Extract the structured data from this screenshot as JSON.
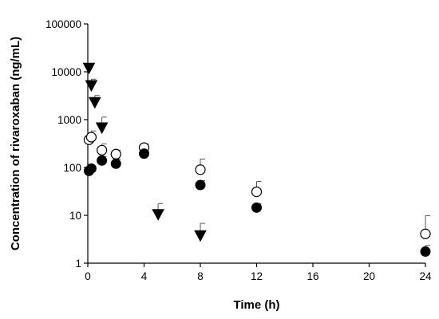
{
  "chart_data": {
    "type": "scatter",
    "xlabel": "Time (h)",
    "ylabel": "Concentration of rivaroxaban (ng/mL)",
    "xlim": [
      0,
      24
    ],
    "ylim": [
      1,
      100000
    ],
    "yscale": "log",
    "xticks": [
      0,
      4,
      8,
      12,
      16,
      20,
      24
    ],
    "yticks": [
      1,
      10,
      100,
      1000,
      10000,
      100000
    ],
    "xtick_labels": [
      "0",
      "4",
      "8",
      "12",
      "16",
      "20",
      "24"
    ],
    "ytick_labels": [
      "1",
      "10",
      "100",
      "1000",
      "10000",
      "100000"
    ],
    "grid": false,
    "legend": false,
    "series": [
      {
        "marker": "triangle-down",
        "fill": "#000000",
        "points": [
          {
            "x": 0.083,
            "y": 12000,
            "err": 0
          },
          {
            "x": 0.25,
            "y": 5200,
            "err": 1800
          },
          {
            "x": 0.5,
            "y": 2300,
            "err": 900
          },
          {
            "x": 1,
            "y": 680,
            "err": 450
          },
          {
            "x": 5,
            "y": 10.5,
            "err": 7
          },
          {
            "x": 8,
            "y": 3.8,
            "err": 3
          }
        ]
      },
      {
        "marker": "circle-open",
        "fill": "#ffffff",
        "points": [
          {
            "x": 0.083,
            "y": 380,
            "err": 60
          },
          {
            "x": 0.25,
            "y": 430,
            "err": 150
          },
          {
            "x": 1,
            "y": 230,
            "err": 80
          },
          {
            "x": 2,
            "y": 190,
            "err": 40
          },
          {
            "x": 4,
            "y": 260,
            "err": 50
          },
          {
            "x": 8,
            "y": 90,
            "err": 60
          },
          {
            "x": 12,
            "y": 31,
            "err": 20
          },
          {
            "x": 24,
            "y": 4.1,
            "err": 5.7
          }
        ]
      },
      {
        "marker": "circle-filled",
        "fill": "#000000",
        "points": [
          {
            "x": 0.083,
            "y": 85,
            "err": 0
          },
          {
            "x": 0.25,
            "y": 95,
            "err": 10
          },
          {
            "x": 1,
            "y": 140,
            "err": 30
          },
          {
            "x": 2,
            "y": 120,
            "err": 30
          },
          {
            "x": 4,
            "y": 195,
            "err": 25
          },
          {
            "x": 8,
            "y": 43,
            "err": 10
          },
          {
            "x": 12,
            "y": 14.5,
            "err": 3
          },
          {
            "x": 24,
            "y": 1.75,
            "err": 0.6
          }
        ]
      }
    ]
  }
}
